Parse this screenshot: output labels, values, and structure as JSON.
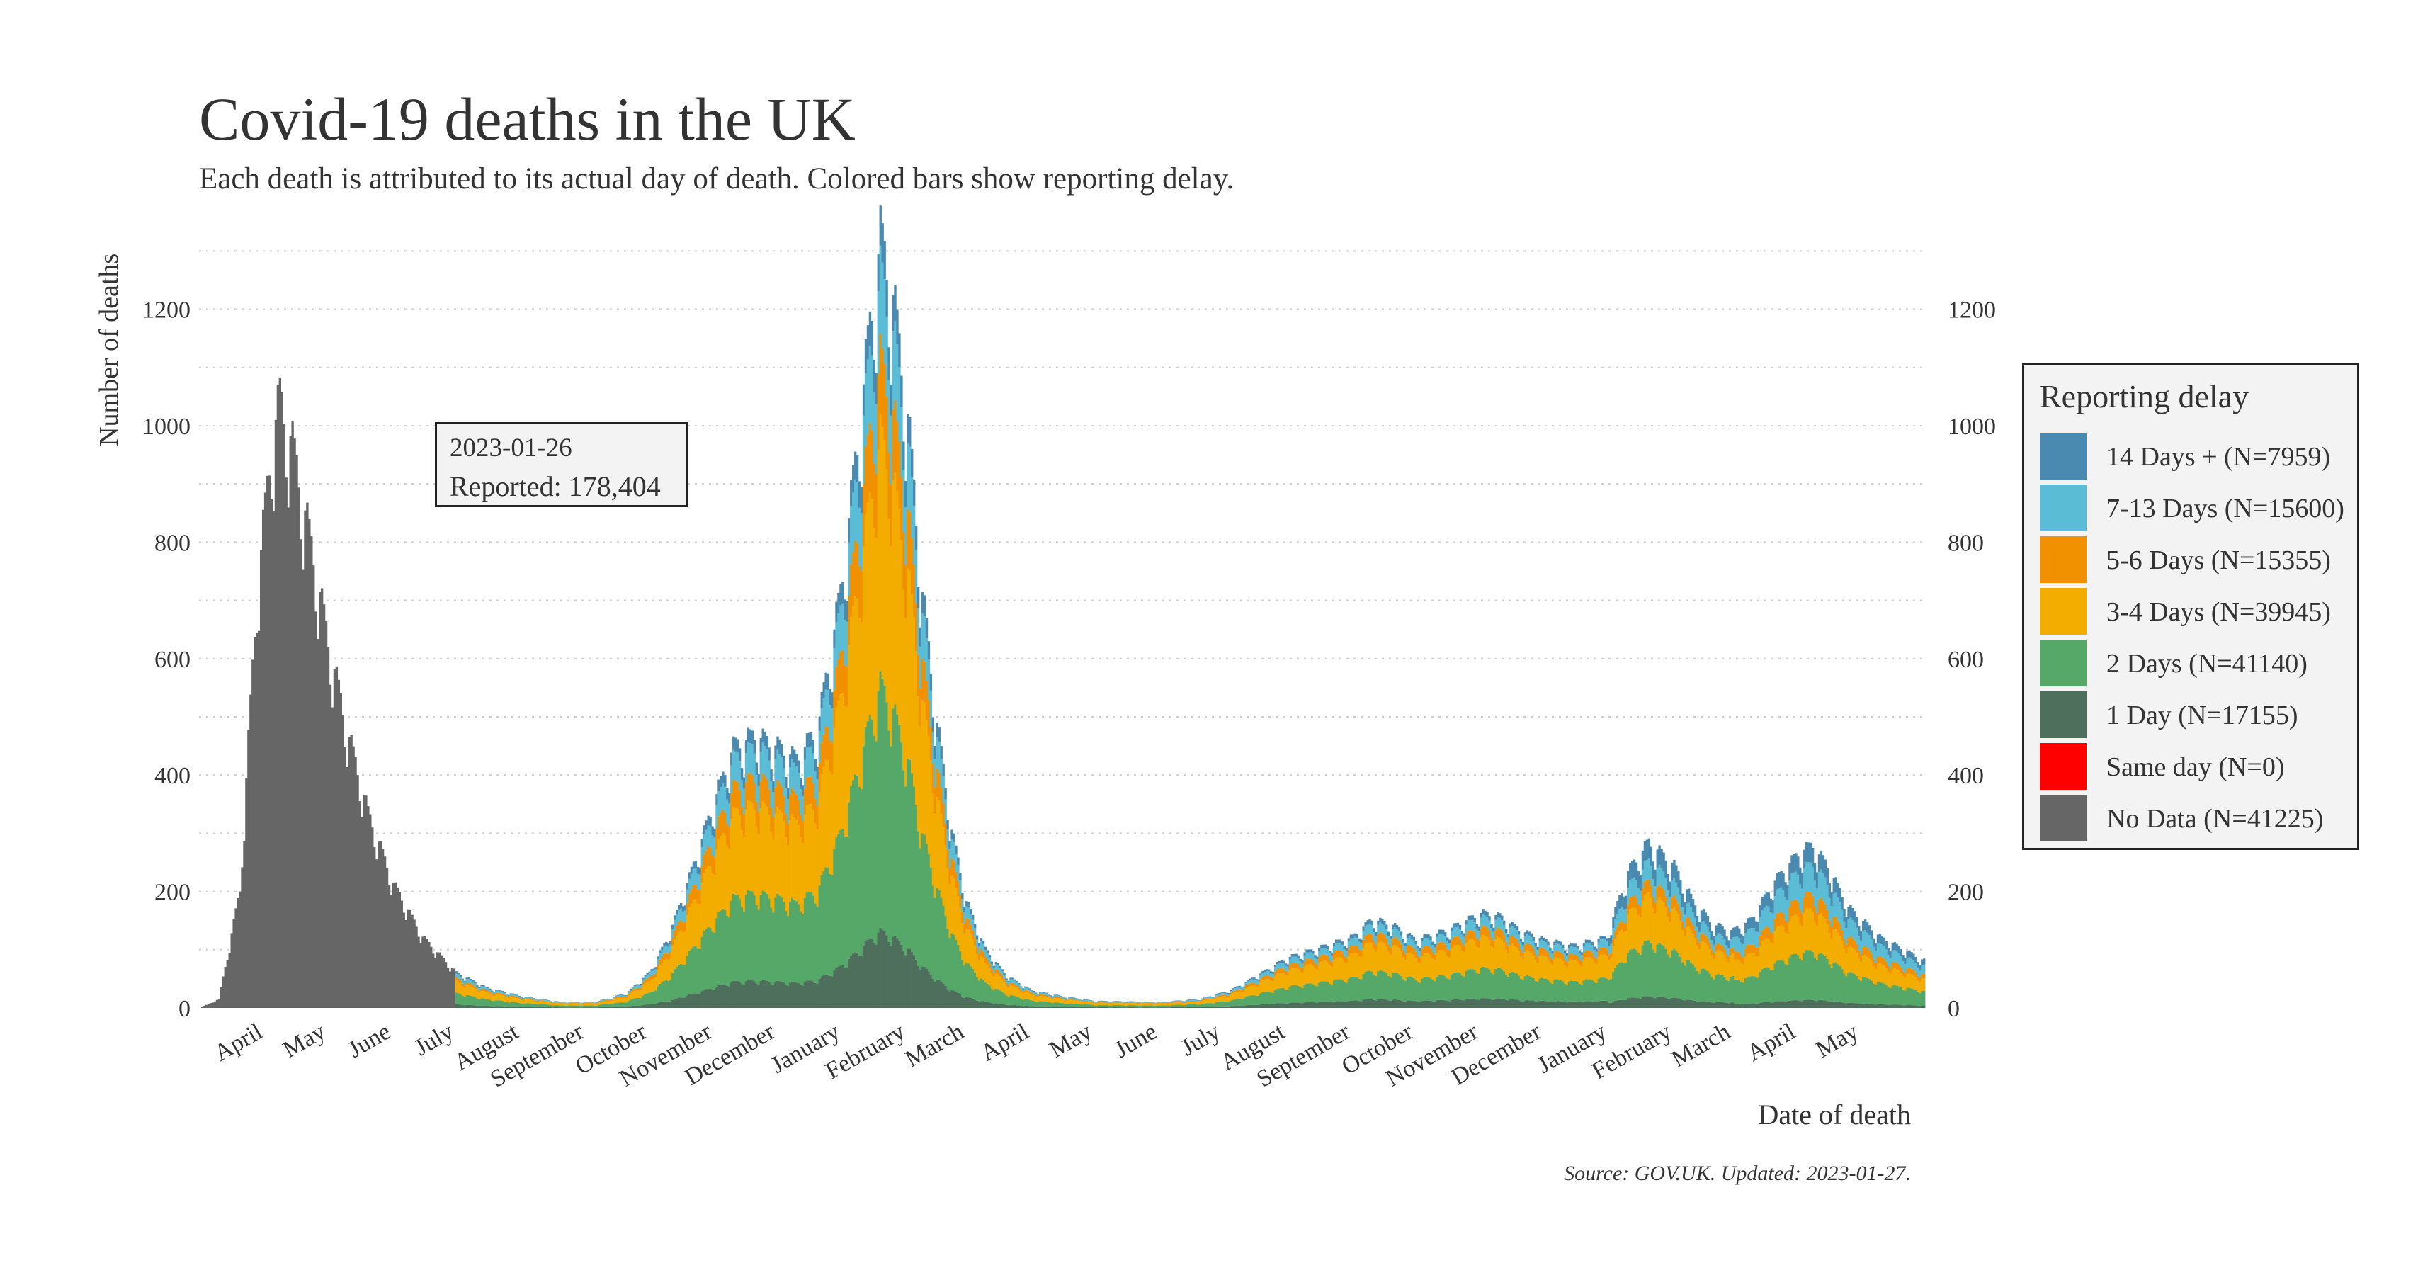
{
  "title": "Covid-19 deaths in the UK",
  "subtitle": "Each death is attributed to its actual day of death. Colored bars show reporting delay.",
  "y_axis_label": "Number of deaths",
  "x_axis_label": "Date of death",
  "source": "Source: GOV.UK. Updated: 2023-01-27.",
  "tooltip": {
    "date": "2023-01-26",
    "reported": "Reported: 178,404"
  },
  "legend": {
    "title": "Reporting delay",
    "items": [
      {
        "label": "14 Days + (N=7959)",
        "color": "#4a8ab0"
      },
      {
        "label": "7-13 Days (N=15600)",
        "color": "#5bbcd6"
      },
      {
        "label": "5-6 Days (N=15355)",
        "color": "#f29100"
      },
      {
        "label": "3-4 Days (N=39945)",
        "color": "#f2ad00"
      },
      {
        "label": "2 Days (N=41140)",
        "color": "#55a868"
      },
      {
        "label": "1 Day (N=17155)",
        "color": "#4e6f5c"
      },
      {
        "label": "Same day (N=0)",
        "color": "#ff0000"
      },
      {
        "label": "No Data (N=41225)",
        "color": "#666666"
      }
    ]
  },
  "chart_data": {
    "type": "bar",
    "stacked": true,
    "x_start": "2020-03-01",
    "x_end": "2022-05-31",
    "ylim": [
      0,
      1360
    ],
    "y_ticks": [
      0,
      200,
      400,
      600,
      800,
      1000,
      1200
    ],
    "grid": "horizontal dotted",
    "legend_position": "right",
    "x_tick_labels": [
      "April",
      "May",
      "June",
      "July",
      "August",
      "September",
      "October",
      "November",
      "December",
      "January",
      "February",
      "March",
      "April",
      "May",
      "June",
      "July",
      "August",
      "September",
      "October",
      "November",
      "December",
      "January",
      "February",
      "March",
      "April",
      "May"
    ],
    "x_tick_dates": [
      "2020-04-01",
      "2020-05-01",
      "2020-06-01",
      "2020-07-01",
      "2020-08-01",
      "2020-09-01",
      "2020-10-01",
      "2020-11-01",
      "2020-12-01",
      "2021-01-01",
      "2021-02-01",
      "2021-03-01",
      "2021-04-01",
      "2021-05-01",
      "2021-06-01",
      "2021-07-01",
      "2021-08-01",
      "2021-09-01",
      "2021-10-01",
      "2021-11-01",
      "2021-12-01",
      "2022-01-01",
      "2022-02-01",
      "2022-03-01",
      "2022-04-01",
      "2022-05-01"
    ],
    "daily_total_anchors": [
      [
        "2020-03-01",
        0
      ],
      [
        "2020-03-10",
        15
      ],
      [
        "2020-03-20",
        200
      ],
      [
        "2020-03-28",
        700
      ],
      [
        "2020-04-04",
        950
      ],
      [
        "2020-04-08",
        1030
      ],
      [
        "2020-04-14",
        950
      ],
      [
        "2020-04-22",
        800
      ],
      [
        "2020-05-01",
        620
      ],
      [
        "2020-05-10",
        470
      ],
      [
        "2020-05-20",
        330
      ],
      [
        "2020-06-01",
        210
      ],
      [
        "2020-06-15",
        120
      ],
      [
        "2020-07-01",
        60
      ],
      [
        "2020-07-15",
        35
      ],
      [
        "2020-08-01",
        20
      ],
      [
        "2020-08-20",
        10
      ],
      [
        "2020-09-05",
        10
      ],
      [
        "2020-09-20",
        25
      ],
      [
        "2020-10-01",
        60
      ],
      [
        "2020-10-10",
        120
      ],
      [
        "2020-10-20",
        220
      ],
      [
        "2020-11-01",
        350
      ],
      [
        "2020-11-10",
        440
      ],
      [
        "2020-11-20",
        460
      ],
      [
        "2020-12-01",
        440
      ],
      [
        "2020-12-10",
        420
      ],
      [
        "2020-12-20",
        470
      ],
      [
        "2020-12-31",
        700
      ],
      [
        "2021-01-08",
        950
      ],
      [
        "2021-01-14",
        1150
      ],
      [
        "2021-01-19",
        1300
      ],
      [
        "2021-01-25",
        1200
      ],
      [
        "2021-02-01",
        1000
      ],
      [
        "2021-02-08",
        700
      ],
      [
        "2021-02-15",
        480
      ],
      [
        "2021-02-22",
        300
      ],
      [
        "2021-03-01",
        180
      ],
      [
        "2021-03-10",
        100
      ],
      [
        "2021-03-20",
        55
      ],
      [
        "2021-04-01",
        30
      ],
      [
        "2021-04-15",
        20
      ],
      [
        "2021-05-01",
        12
      ],
      [
        "2021-06-01",
        10
      ],
      [
        "2021-06-20",
        15
      ],
      [
        "2021-07-05",
        30
      ],
      [
        "2021-07-20",
        60
      ],
      [
        "2021-08-01",
        85
      ],
      [
        "2021-08-15",
        100
      ],
      [
        "2021-09-01",
        120
      ],
      [
        "2021-09-10",
        150
      ],
      [
        "2021-09-20",
        140
      ],
      [
        "2021-10-01",
        115
      ],
      [
        "2021-10-15",
        130
      ],
      [
        "2021-11-01",
        160
      ],
      [
        "2021-11-10",
        155
      ],
      [
        "2021-11-20",
        130
      ],
      [
        "2021-12-01",
        115
      ],
      [
        "2021-12-15",
        105
      ],
      [
        "2021-12-31",
        120
      ],
      [
        "2022-01-10",
        230
      ],
      [
        "2022-01-20",
        280
      ],
      [
        "2022-02-01",
        240
      ],
      [
        "2022-02-10",
        180
      ],
      [
        "2022-02-20",
        140
      ],
      [
        "2022-03-01",
        130
      ],
      [
        "2022-03-10",
        150
      ],
      [
        "2022-03-20",
        210
      ],
      [
        "2022-04-01",
        260
      ],
      [
        "2022-04-08",
        275
      ],
      [
        "2022-04-15",
        240
      ],
      [
        "2022-04-25",
        170
      ],
      [
        "2022-05-10",
        120
      ],
      [
        "2022-05-31",
        80
      ]
    ],
    "no_data_until": "2020-06-30"
  }
}
